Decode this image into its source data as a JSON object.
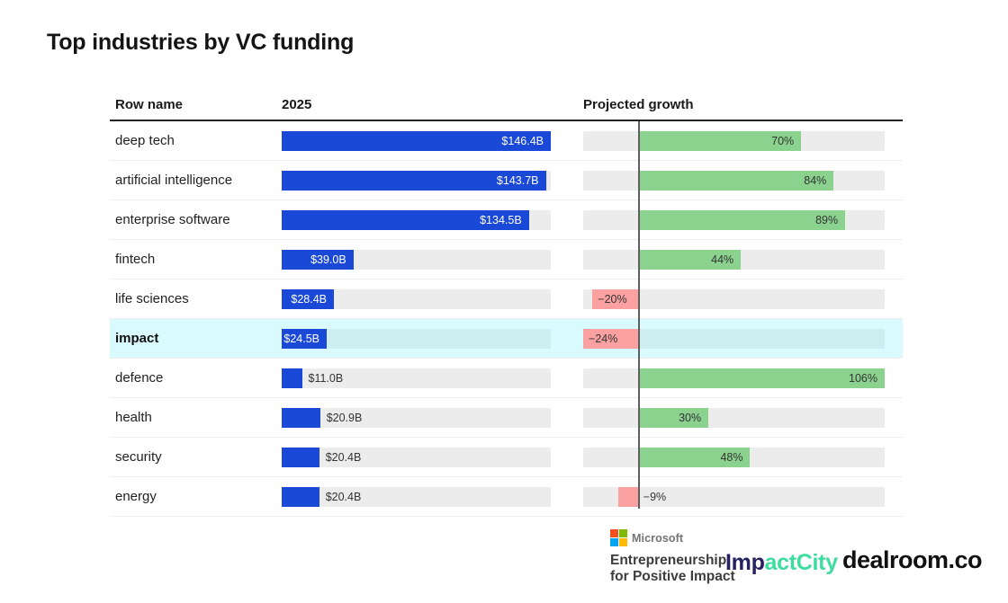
{
  "title": "Top industries by VC funding",
  "header": {
    "row_name": "Row name",
    "year": "2025",
    "growth": "Projected growth"
  },
  "chart_data": {
    "type": "bar",
    "title": "Top industries by VC funding",
    "categories": [
      "deep tech",
      "artificial intelligence",
      "enterprise software",
      "fintech",
      "life sciences",
      "impact",
      "defence",
      "health",
      "security",
      "energy"
    ],
    "series": [
      {
        "name": "2025",
        "unit": "USD billions",
        "values": [
          146.4,
          143.7,
          134.5,
          39.0,
          28.4,
          24.5,
          11.0,
          20.9,
          20.4,
          20.4
        ],
        "labels": [
          "$146.4B",
          "$143.7B",
          "$134.5B",
          "$39.0B",
          "$28.4B",
          "$24.5B",
          "$11.0B",
          "$20.9B",
          "$20.4B",
          "$20.4B"
        ]
      },
      {
        "name": "Projected growth",
        "unit": "percent",
        "values": [
          70,
          84,
          89,
          44,
          -20,
          -24,
          106,
          30,
          48,
          -9
        ],
        "labels": [
          "70%",
          "84%",
          "89%",
          "44%",
          "−20%",
          "−24%",
          "106%",
          "30%",
          "48%",
          "−9%"
        ]
      }
    ],
    "highlighted_category": "impact",
    "funding_axis": {
      "min": 0,
      "max": 146.4
    },
    "growth_axis": {
      "min": -24,
      "max": 106,
      "zero_line": true
    },
    "legend": "none",
    "colors": {
      "funding_bar": "#1a49d8",
      "growth_positive": "#8bd28f",
      "growth_negative": "#fba1a1",
      "track": "#ececec",
      "highlight_row_bg": "#d9faff",
      "highlight_track": "#cdeef0"
    }
  },
  "footer": {
    "microsoft": {
      "brand": "Microsoft",
      "logo_icon": "microsoft-four-squares",
      "line1": "Entrepreneurship",
      "line2": "for Positive Impact"
    },
    "impactcity": {
      "part1": "Imp",
      "part2": "actCity"
    },
    "dealroom": "dealroom.co"
  }
}
